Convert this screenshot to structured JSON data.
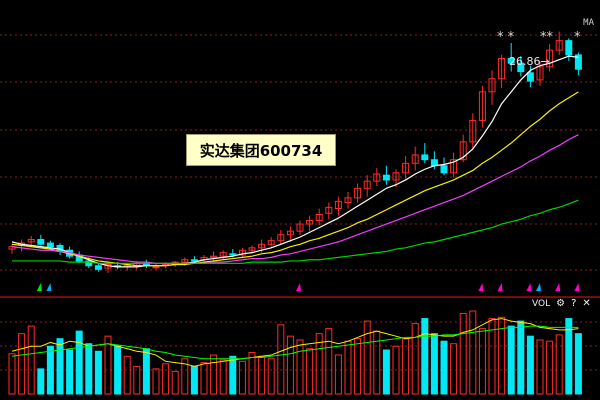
{
  "stock": {
    "title": "实达集团600734"
  },
  "indicators": {
    "ma_label": "MA",
    "vol_label": "VOL"
  },
  "annotation": {
    "high_price": "26.86",
    "arrow": "→"
  },
  "stars": [
    {
      "text": "* *"
    },
    {
      "text": "**"
    },
    {
      "text": "*"
    }
  ],
  "colors": {
    "up": "#ff2b2b",
    "down": "#00e8f3",
    "ma5": "#ffffff",
    "ma10": "#f6f000",
    "ma20": "#f03cff",
    "ma60": "#00d300",
    "grid": "#8b1f1f"
  },
  "icons": {
    "gear": "gear-icon",
    "help": "question-mark-icon",
    "close": "close-icon"
  },
  "chart_data": {
    "type": "candlestick",
    "price_series": [
      {
        "x": 1,
        "o": 8.6,
        "h": 9.0,
        "l": 8.2,
        "c": 8.8
      },
      {
        "x": 2,
        "o": 8.9,
        "h": 9.4,
        "l": 8.4,
        "c": 9.1
      },
      {
        "x": 3,
        "o": 9.2,
        "h": 9.7,
        "l": 8.8,
        "c": 9.4
      },
      {
        "x": 4,
        "o": 9.4,
        "h": 9.8,
        "l": 8.9,
        "c": 9.0
      },
      {
        "x": 5,
        "o": 9.1,
        "h": 9.3,
        "l": 8.6,
        "c": 8.8
      },
      {
        "x": 6,
        "o": 8.9,
        "h": 9.1,
        "l": 8.1,
        "c": 8.4
      },
      {
        "x": 7,
        "o": 8.5,
        "h": 8.8,
        "l": 7.8,
        "c": 8.0
      },
      {
        "x": 8,
        "o": 8.1,
        "h": 8.4,
        "l": 7.4,
        "c": 7.6
      },
      {
        "x": 9,
        "o": 7.6,
        "h": 7.9,
        "l": 7.0,
        "c": 7.2
      },
      {
        "x": 10,
        "o": 7.2,
        "h": 7.4,
        "l": 6.7,
        "c": 6.9
      },
      {
        "x": 11,
        "o": 7.0,
        "h": 7.5,
        "l": 6.6,
        "c": 7.3
      },
      {
        "x": 12,
        "o": 7.2,
        "h": 7.5,
        "l": 6.9,
        "c": 7.1
      },
      {
        "x": 13,
        "o": 7.1,
        "h": 7.4,
        "l": 6.8,
        "c": 7.2
      },
      {
        "x": 14,
        "o": 7.2,
        "h": 7.6,
        "l": 6.9,
        "c": 7.4
      },
      {
        "x": 15,
        "o": 7.4,
        "h": 7.7,
        "l": 7.0,
        "c": 7.2
      },
      {
        "x": 16,
        "o": 7.1,
        "h": 7.4,
        "l": 6.9,
        "c": 7.1
      },
      {
        "x": 17,
        "o": 7.2,
        "h": 7.5,
        "l": 7.0,
        "c": 7.3
      },
      {
        "x": 18,
        "o": 7.3,
        "h": 7.6,
        "l": 7.1,
        "c": 7.5
      },
      {
        "x": 19,
        "o": 7.5,
        "h": 7.9,
        "l": 7.2,
        "c": 7.7
      },
      {
        "x": 20,
        "o": 7.7,
        "h": 8.0,
        "l": 7.4,
        "c": 7.6
      },
      {
        "x": 21,
        "o": 7.7,
        "h": 8.1,
        "l": 7.5,
        "c": 7.9
      },
      {
        "x": 22,
        "o": 7.9,
        "h": 8.4,
        "l": 7.6,
        "c": 8.0
      },
      {
        "x": 23,
        "o": 8.0,
        "h": 8.5,
        "l": 7.7,
        "c": 8.3
      },
      {
        "x": 24,
        "o": 8.2,
        "h": 8.6,
        "l": 7.9,
        "c": 8.1
      },
      {
        "x": 25,
        "o": 8.1,
        "h": 8.7,
        "l": 7.9,
        "c": 8.5
      },
      {
        "x": 26,
        "o": 8.5,
        "h": 8.9,
        "l": 8.2,
        "c": 8.7
      },
      {
        "x": 27,
        "o": 8.7,
        "h": 9.4,
        "l": 8.3,
        "c": 9.0
      },
      {
        "x": 28,
        "o": 9.0,
        "h": 9.6,
        "l": 8.8,
        "c": 9.3
      },
      {
        "x": 29,
        "o": 9.3,
        "h": 10.2,
        "l": 9.0,
        "c": 9.8
      },
      {
        "x": 30,
        "o": 9.8,
        "h": 10.5,
        "l": 9.2,
        "c": 10.1
      },
      {
        "x": 31,
        "o": 10.1,
        "h": 11.0,
        "l": 9.8,
        "c": 10.7
      },
      {
        "x": 32,
        "o": 10.7,
        "h": 11.4,
        "l": 10.1,
        "c": 11.0
      },
      {
        "x": 33,
        "o": 11.0,
        "h": 12.0,
        "l": 10.6,
        "c": 11.5
      },
      {
        "x": 34,
        "o": 11.6,
        "h": 12.5,
        "l": 11.1,
        "c": 12.1
      },
      {
        "x": 35,
        "o": 12.0,
        "h": 13.0,
        "l": 11.4,
        "c": 12.6
      },
      {
        "x": 36,
        "o": 12.5,
        "h": 13.4,
        "l": 12.0,
        "c": 12.9
      },
      {
        "x": 37,
        "o": 12.9,
        "h": 14.1,
        "l": 12.5,
        "c": 13.7
      },
      {
        "x": 38,
        "o": 13.7,
        "h": 14.8,
        "l": 13.0,
        "c": 14.3
      },
      {
        "x": 39,
        "o": 14.3,
        "h": 15.4,
        "l": 13.9,
        "c": 14.9
      },
      {
        "x": 40,
        "o": 14.8,
        "h": 15.6,
        "l": 14.0,
        "c": 14.4
      },
      {
        "x": 41,
        "o": 14.4,
        "h": 15.3,
        "l": 13.8,
        "c": 15.0
      },
      {
        "x": 42,
        "o": 15.0,
        "h": 16.4,
        "l": 14.5,
        "c": 15.8
      },
      {
        "x": 43,
        "o": 15.8,
        "h": 17.2,
        "l": 15.2,
        "c": 16.5
      },
      {
        "x": 44,
        "o": 16.5,
        "h": 17.5,
        "l": 15.8,
        "c": 16.1
      },
      {
        "x": 45,
        "o": 16.1,
        "h": 16.8,
        "l": 15.3,
        "c": 15.6
      },
      {
        "x": 46,
        "o": 15.6,
        "h": 16.3,
        "l": 14.8,
        "c": 15.0
      },
      {
        "x": 47,
        "o": 15.0,
        "h": 16.7,
        "l": 14.6,
        "c": 16.1
      },
      {
        "x": 48,
        "o": 16.1,
        "h": 18.2,
        "l": 15.9,
        "c": 17.6
      },
      {
        "x": 49,
        "o": 17.6,
        "h": 20.0,
        "l": 17.0,
        "c": 19.4
      },
      {
        "x": 50,
        "o": 19.4,
        "h": 22.3,
        "l": 18.8,
        "c": 21.8
      },
      {
        "x": 51,
        "o": 21.8,
        "h": 23.6,
        "l": 20.7,
        "c": 22.9
      },
      {
        "x": 52,
        "o": 22.9,
        "h": 24.9,
        "l": 22.1,
        "c": 24.6
      },
      {
        "x": 53,
        "o": 24.6,
        "h": 25.9,
        "l": 23.5,
        "c": 24.2
      },
      {
        "x": 54,
        "o": 24.2,
        "h": 24.8,
        "l": 23.1,
        "c": 23.5
      },
      {
        "x": 55,
        "o": 23.4,
        "h": 24.0,
        "l": 22.2,
        "c": 22.7
      },
      {
        "x": 56,
        "o": 22.8,
        "h": 24.4,
        "l": 22.3,
        "c": 23.9
      },
      {
        "x": 57,
        "o": 23.9,
        "h": 25.8,
        "l": 23.5,
        "c": 25.3
      },
      {
        "x": 58,
        "o": 25.3,
        "h": 26.86,
        "l": 24.9,
        "c": 26.1
      },
      {
        "x": 59,
        "o": 26.1,
        "h": 26.3,
        "l": 24.4,
        "c": 24.9
      },
      {
        "x": 60,
        "o": 24.9,
        "h": 25.1,
        "l": 23.2,
        "c": 23.7
      }
    ],
    "ma_series": [
      {
        "name": "MA5",
        "values": [
          9.2,
          9.0,
          8.9,
          8.8,
          8.7,
          8.6,
          8.3,
          8.0,
          7.7,
          7.4,
          7.2,
          7.1,
          7.1,
          7.1,
          7.2,
          7.2,
          7.2,
          7.3,
          7.4,
          7.5,
          7.7,
          7.8,
          7.9,
          8.0,
          8.2,
          8.3,
          8.5,
          8.7,
          9.0,
          9.3,
          9.6,
          10.0,
          10.4,
          10.8,
          11.2,
          11.7,
          12.2,
          12.7,
          13.2,
          13.7,
          14.0,
          14.4,
          14.9,
          15.3,
          15.6,
          15.7,
          15.9,
          16.3,
          17.0,
          18.1,
          19.3,
          20.8,
          21.8,
          22.8,
          23.6,
          24.0,
          24.2,
          24.5,
          24.8,
          24.7
        ]
      },
      {
        "name": "MA10",
        "values": [
          9.0,
          8.9,
          8.8,
          8.7,
          8.6,
          8.4,
          8.2,
          8.0,
          7.8,
          7.6,
          7.5,
          7.4,
          7.3,
          7.2,
          7.2,
          7.2,
          7.2,
          7.3,
          7.3,
          7.4,
          7.5,
          7.6,
          7.7,
          7.8,
          7.9,
          8.0,
          8.2,
          8.3,
          8.5,
          8.8,
          9.0,
          9.3,
          9.5,
          9.8,
          10.1,
          10.4,
          10.8,
          11.1,
          11.5,
          11.9,
          12.3,
          12.7,
          13.1,
          13.5,
          13.8,
          14.1,
          14.4,
          14.8,
          15.2,
          15.8,
          16.3,
          16.9,
          17.5,
          18.2,
          18.9,
          19.5,
          20.2,
          20.8,
          21.3,
          21.8
        ]
      },
      {
        "name": "MA20",
        "values": [
          8.8,
          8.7,
          8.6,
          8.5,
          8.5,
          8.4,
          8.3,
          8.1,
          8.0,
          7.9,
          7.8,
          7.7,
          7.6,
          7.5,
          7.5,
          7.4,
          7.4,
          7.4,
          7.4,
          7.4,
          7.4,
          7.5,
          7.5,
          7.6,
          7.7,
          7.8,
          7.8,
          7.9,
          8.1,
          8.2,
          8.4,
          8.6,
          8.8,
          9.0,
          9.2,
          9.5,
          9.8,
          10.1,
          10.4,
          10.7,
          11.0,
          11.3,
          11.6,
          11.9,
          12.2,
          12.5,
          12.8,
          13.1,
          13.5,
          13.9,
          14.3,
          14.7,
          15.1,
          15.5,
          16.0,
          16.4,
          16.9,
          17.3,
          17.8,
          18.2
        ]
      },
      {
        "name": "MA60",
        "values": [
          7.6,
          7.6,
          7.6,
          7.6,
          7.6,
          7.6,
          7.5,
          7.5,
          7.5,
          7.4,
          7.4,
          7.4,
          7.4,
          7.4,
          7.4,
          7.4,
          7.4,
          7.4,
          7.4,
          7.4,
          7.4,
          7.4,
          7.4,
          7.4,
          7.4,
          7.5,
          7.5,
          7.5,
          7.5,
          7.6,
          7.6,
          7.7,
          7.7,
          7.8,
          7.9,
          8.0,
          8.1,
          8.2,
          8.3,
          8.4,
          8.6,
          8.7,
          8.9,
          9.1,
          9.2,
          9.4,
          9.6,
          9.8,
          10.0,
          10.2,
          10.4,
          10.7,
          10.9,
          11.1,
          11.4,
          11.6,
          11.9,
          12.1,
          12.4,
          12.7
        ]
      }
    ],
    "volumes": [
      32,
      48,
      54,
      20,
      38,
      44,
      35,
      50,
      40,
      34,
      46,
      38,
      30,
      22,
      36,
      20,
      24,
      18,
      28,
      22,
      25,
      31,
      27,
      30,
      26,
      33,
      30,
      28,
      55,
      46,
      43,
      36,
      48,
      52,
      31,
      42,
      44,
      58,
      50,
      35,
      38,
      44,
      56,
      60,
      48,
      42,
      40,
      64,
      66,
      52,
      60,
      61,
      54,
      58,
      46,
      43,
      42,
      47,
      60,
      48
    ],
    "vol_ma": [
      {
        "name": "VOL_MA5",
        "values": [
          34,
          36,
          38,
          38,
          41,
          39,
          42,
          41,
          38,
          39,
          40,
          38,
          36,
          34,
          33,
          31,
          26,
          25,
          24,
          22,
          24,
          25,
          26,
          27,
          28,
          29,
          30,
          31,
          34,
          37,
          39,
          40,
          41,
          42,
          40,
          42,
          45,
          48,
          50,
          48,
          46,
          44,
          45,
          48,
          47,
          46,
          46,
          49,
          51,
          55,
          59,
          60,
          58,
          57,
          56,
          53,
          52,
          51,
          51,
          52
        ]
      },
      {
        "name": "VOL_MA10",
        "values": [
          30,
          31,
          32,
          33,
          34,
          35,
          36,
          37,
          38,
          39,
          40,
          39,
          38,
          37,
          36,
          34,
          33,
          31,
          30,
          29,
          28,
          28,
          28,
          28,
          28,
          29,
          29,
          30,
          31,
          32,
          34,
          35,
          36,
          37,
          38,
          39,
          40,
          41,
          42,
          43,
          44,
          45,
          45,
          46,
          46,
          47,
          47,
          48,
          49,
          50,
          51,
          52,
          53,
          53,
          54,
          54,
          53,
          53,
          53,
          53
        ]
      }
    ],
    "markers": [
      {
        "x": 4,
        "color": "#00e800"
      },
      {
        "x": 5,
        "color": "#00b0ff"
      },
      {
        "x": 31,
        "color": "#ff00d0"
      },
      {
        "x": 50,
        "color": "#ff00d0"
      },
      {
        "x": 52,
        "color": "#ff00d0"
      },
      {
        "x": 55,
        "color": "#ff00d0"
      },
      {
        "x": 56,
        "color": "#00b0ff"
      },
      {
        "x": 58,
        "color": "#ff00d0"
      },
      {
        "x": 60,
        "color": "#ff00d0"
      }
    ]
  }
}
